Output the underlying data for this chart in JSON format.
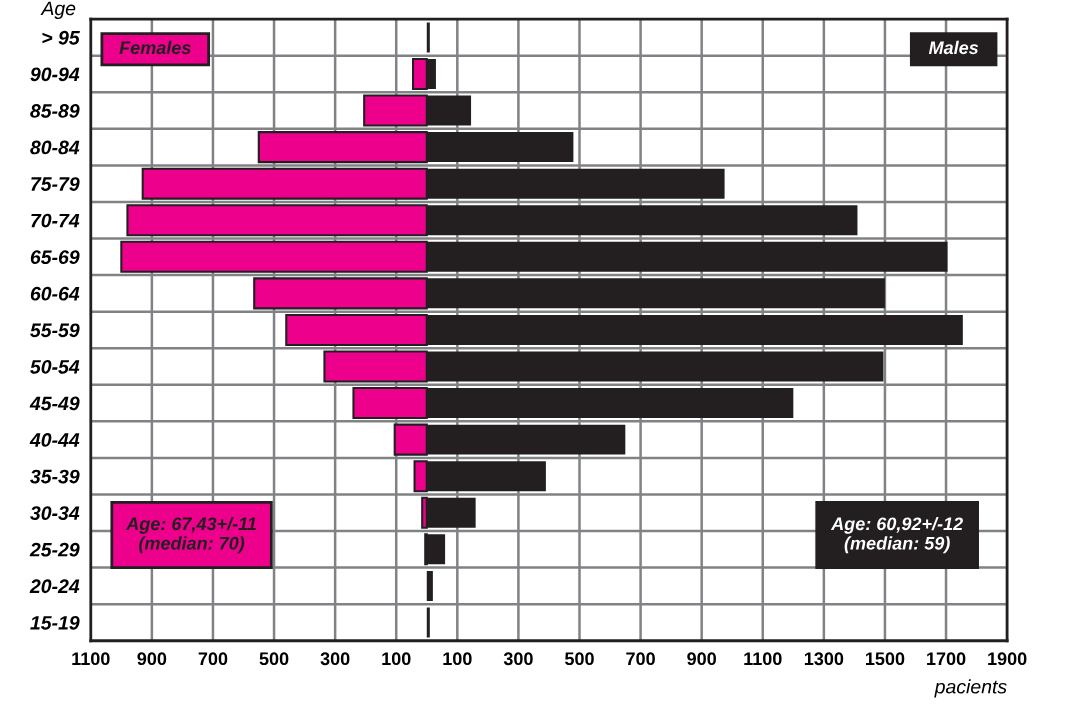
{
  "chart_data": {
    "type": "bar",
    "orientation": "horizontal",
    "stacked": true,
    "ylabel": "Age",
    "xlabel": "pacients",
    "categories": [
      "> 95",
      "90-94",
      "85-89",
      "80-84",
      "75-79",
      "70-74",
      "65-69",
      "60-64",
      "55-59",
      "50-54",
      "45-49",
      "40-44",
      "35-39",
      "30-34",
      "25-29",
      "20-24",
      "15-19"
    ],
    "series": [
      {
        "name": "Females",
        "color": "#ec008c",
        "values": [
          null,
          -45,
          -205,
          -550,
          -930,
          -980,
          -1000,
          -565,
          -460,
          -335,
          -240,
          -105,
          -40,
          -15,
          -5,
          null,
          null
        ]
      },
      {
        "name": "Males",
        "color": "#231f20",
        "values": [
          10,
          30,
          145,
          480,
          975,
          1410,
          1705,
          1500,
          1755,
          1495,
          1200,
          650,
          390,
          160,
          60,
          20,
          10
        ]
      }
    ],
    "xlim": [
      -1100,
      1900
    ],
    "xticks": [
      {
        "value": -1100,
        "label": "1100"
      },
      {
        "value": -900,
        "label": "900"
      },
      {
        "value": -700,
        "label": "700"
      },
      {
        "value": -500,
        "label": "500"
      },
      {
        "value": -300,
        "label": "300"
      },
      {
        "value": -100,
        "label": "100"
      },
      100,
      300,
      500,
      700,
      900,
      1100,
      1300,
      1500,
      1700,
      1900
    ],
    "grid": true,
    "annotations": [
      "Age: 67,43+/-11\n(median: 70)",
      "Age: 60,92+/-12\n(median: 59)"
    ]
  }
}
